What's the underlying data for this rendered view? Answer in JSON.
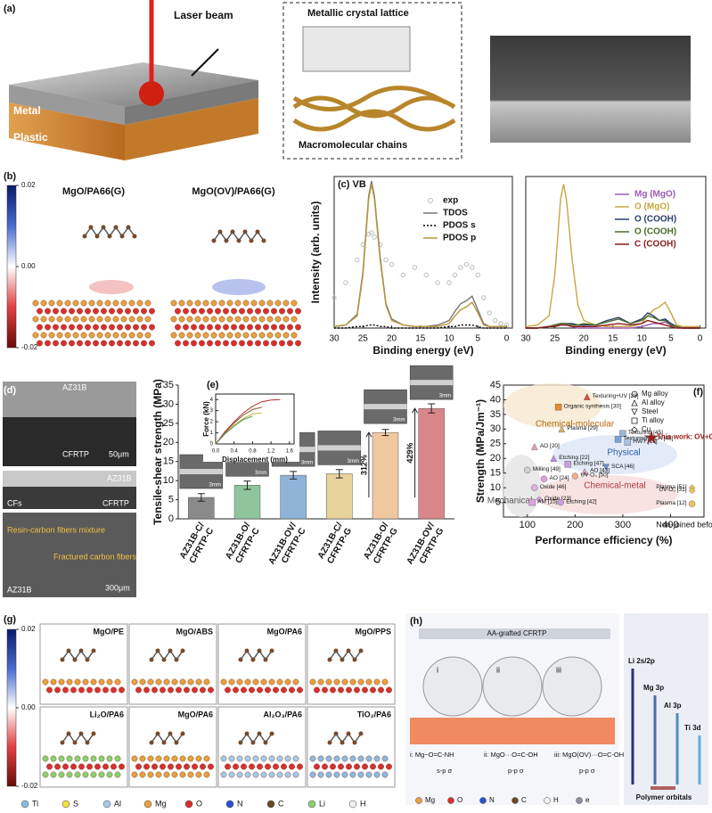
{
  "panel_a": {
    "label": "(a)",
    "laser": "Laser beam",
    "lattice": "Metallic crystal lattice",
    "metal": "Metal",
    "plastic": "Plastic",
    "chains": "Macromolecular chains"
  },
  "panel_b": {
    "label": "(b)",
    "titles": [
      "MgO/PA66(G)",
      "MgO(OV)/PA66(G)"
    ],
    "colorbar_ticks": [
      0.02,
      {
        "value": 0,
        "label": "0.00"
      },
      -0.02
    ]
  },
  "panel_d": {
    "label": "(d)",
    "top_metal": "AZ31B",
    "top_plastic": "CFRTP",
    "top_scale": "50μm",
    "mid_metal": "AZ31B",
    "mid_plastic": "CFRTP",
    "mid_fibers": "CFs",
    "mixture": "Resin-carbon fibers mixture",
    "fractured": "Fractured carbon fibers",
    "bottom_metal": "AZ31B",
    "bottom_scale": "300μm"
  },
  "panel_g": {
    "label": "(g)",
    "titles": [
      "MgO/PE",
      "MgO/ABS",
      "MgO/PA6",
      "MgO/PPS",
      "Li₂O/PA6",
      "MgO/PA6",
      "Al₂O₃/PA6",
      "TiO₂/PA6"
    ],
    "colorbar_ticks": [
      0.02,
      {
        "value": 0,
        "label": "0.00"
      },
      -0.02
    ],
    "legend": [
      "Ti",
      "S",
      "Al",
      "Mg",
      "O",
      "N",
      "C",
      "Li",
      "H"
    ],
    "legend_colors": [
      "#8fb8e0",
      "#f2e040",
      "#a8c8e8",
      "#e8a040",
      "#d83030",
      "#3050d0",
      "#6b4a2a",
      "#8ad070",
      "#f0f0f0"
    ]
  },
  "panel_h": {
    "label": "(h)",
    "top": "AA-grafted CFRTP",
    "sites": [
      "i",
      "ii",
      "iii"
    ],
    "bonds": [
      "i: Mg−O=C-NH",
      "ii: MgO···O=C-OH",
      "iii: MgO(OV)···O=C-OH"
    ],
    "orbitals": [
      "s-p σ",
      "p-p σ",
      "p-p σ"
    ],
    "levels": [
      "Li 2s/2p",
      "Mg 3p",
      "Al 3p",
      "Ti 3d"
    ],
    "polymer": "Polymer orbitals",
    "legend": [
      "Mg",
      "O",
      "N",
      "C",
      "H",
      "e"
    ],
    "legend_colors": [
      "#e8a040",
      "#d83030",
      "#3050d0",
      "#6b4a2a",
      "#f0f0f0",
      "#9090a0"
    ]
  },
  "chart_data": [
    {
      "type": "line",
      "title": "(c) VB",
      "x_label": "Binding energy (eV)",
      "y_label": "Intensity (arb. units)",
      "xlim": [
        30,
        -1
      ],
      "xticks": [
        30,
        25,
        20,
        15,
        10,
        5,
        0
      ],
      "ylim": [
        0,
        1
      ],
      "x": [
        30,
        28,
        26,
        25,
        24,
        23.5,
        23,
        22,
        21,
        20,
        18,
        16,
        14,
        12,
        10,
        9,
        8,
        7,
        6,
        5,
        4,
        3,
        2,
        1,
        0
      ],
      "series": [
        {
          "name": "exp",
          "color": "#bbbbbb",
          "style": "markers",
          "values": [
            0.2,
            0.3,
            0.45,
            0.55,
            0.62,
            0.63,
            0.6,
            0.55,
            0.45,
            0.42,
            0.35,
            0.4,
            0.35,
            0.3,
            0.3,
            0.35,
            0.4,
            0.42,
            0.4,
            0.35,
            0.2,
            0.1,
            0.05,
            0.03,
            0.02
          ]
        },
        {
          "name": "TDOS",
          "color": "#777777",
          "style": "solid",
          "values": [
            0.01,
            0.02,
            0.09,
            0.37,
            0.87,
            0.97,
            0.87,
            0.47,
            0.16,
            0.06,
            0.02,
            0.01,
            0.01,
            0.02,
            0.05,
            0.11,
            0.16,
            0.18,
            0.21,
            0.12,
            0.03,
            0.01,
            0.01,
            0.01,
            0.01
          ]
        },
        {
          "name": "PDOS s",
          "color": "#000000",
          "style": "dotted",
          "values": [
            0,
            0,
            0.01,
            0.01,
            0.02,
            0.02,
            0.02,
            0.01,
            0.01,
            0,
            0,
            0,
            0,
            0,
            0.01,
            0.01,
            0.02,
            0.02,
            0.02,
            0.01,
            0,
            0,
            0,
            0,
            0
          ]
        },
        {
          "name": "PDOS p",
          "color": "#b8963a",
          "style": "solid",
          "values": [
            0.01,
            0.02,
            0.08,
            0.35,
            0.85,
            0.95,
            0.85,
            0.45,
            0.15,
            0.05,
            0.02,
            0.01,
            0.01,
            0.01,
            0.03,
            0.08,
            0.12,
            0.14,
            0.17,
            0.1,
            0.02,
            0.01,
            0.01,
            0.01,
            0.01
          ]
        }
      ]
    },
    {
      "type": "line",
      "x_label": "Binding energy (eV)",
      "xlim": [
        30,
        -1
      ],
      "xticks": [
        30,
        25,
        20,
        15,
        10,
        5,
        0
      ],
      "ylim": [
        0,
        1
      ],
      "x": [
        30,
        28,
        26,
        25,
        24,
        23.5,
        23,
        22,
        21,
        20,
        18,
        16,
        14,
        12,
        10,
        9,
        8,
        7,
        6,
        5,
        4,
        3,
        2,
        1,
        0
      ],
      "series": [
        {
          "name": "Mg (MgO)",
          "color": "#9b59b6",
          "style": "solid",
          "values": [
            0,
            0,
            0.01,
            0.01,
            0.02,
            0.02,
            0.02,
            0.01,
            0,
            0,
            0,
            0,
            0,
            0,
            0.01,
            0.02,
            0.03,
            0.03,
            0.04,
            0.02,
            0.01,
            0,
            0,
            0,
            0
          ]
        },
        {
          "name": "O (MgO)",
          "color": "#c8a640",
          "style": "solid",
          "values": [
            0.01,
            0.02,
            0.08,
            0.35,
            0.85,
            0.95,
            0.85,
            0.45,
            0.15,
            0.05,
            0.02,
            0.01,
            0.01,
            0.01,
            0.03,
            0.08,
            0.12,
            0.14,
            0.17,
            0.1,
            0.02,
            0.01,
            0.01,
            0.01,
            0.01
          ]
        },
        {
          "name": "O (COOH)",
          "color": "#2c3e70",
          "style": "solid",
          "values": [
            0,
            0,
            0.01,
            0.02,
            0.03,
            0.03,
            0.03,
            0.03,
            0.02,
            0.02,
            0.02,
            0.05,
            0.07,
            0.03,
            0.06,
            0.1,
            0.08,
            0.05,
            0.06,
            0.03,
            0.01,
            0,
            0,
            0,
            0
          ]
        },
        {
          "name": "O (COOH)",
          "color": "#4a6b2a",
          "style": "solid",
          "values": [
            0,
            0,
            0.01,
            0.02,
            0.03,
            0.03,
            0.03,
            0.02,
            0.02,
            0.03,
            0.02,
            0.04,
            0.06,
            0.03,
            0.05,
            0.08,
            0.07,
            0.05,
            0.05,
            0.02,
            0.01,
            0,
            0,
            0,
            0
          ]
        },
        {
          "name": "C (COOH)",
          "color": "#8b1a1a",
          "style": "solid",
          "values": [
            0,
            0,
            0.01,
            0.01,
            0.02,
            0.02,
            0.02,
            0.01,
            0.01,
            0.01,
            0.01,
            0.02,
            0.03,
            0.02,
            0.03,
            0.05,
            0.04,
            0.03,
            0.02,
            0.01,
            0,
            0,
            0,
            0,
            0
          ]
        }
      ]
    },
    {
      "type": "bar",
      "title": "(e)",
      "y_label": "Tensile-shear strength (MPa)",
      "categories": [
        "AZ31B-C/ CFRTP-C",
        "AZ31B-O/ CFRTP-C",
        "AZ31B-OV/ CFRTP-C",
        "AZ31B-C/ CFRTP-G",
        "AZ31B-O/ CFRTP-G",
        "AZ31B-OV/ CFRTP-G"
      ],
      "values": [
        5.6,
        8.8,
        11.4,
        11.8,
        22.6,
        28.9
      ],
      "errors": [
        1.0,
        1.1,
        1.0,
        1.1,
        0.8,
        1.2
      ],
      "colors": [
        "#8a8a8a",
        "#8fc59a",
        "#8fb4d8",
        "#e8d39a",
        "#f0c8a0",
        "#d9868a"
      ],
      "ylim": [
        0,
        35
      ],
      "yticks": [
        0,
        5,
        10,
        15,
        20,
        25,
        30,
        35
      ],
      "annotations": [
        "312%",
        "429%"
      ],
      "photo_labels": [
        "3mm",
        "3mm",
        "3mm",
        "3mm",
        "3mm",
        "3mm"
      ]
    },
    {
      "type": "line",
      "x_label": "Displacement (mm)",
      "y_label": "Force (kN)",
      "xlim": [
        0,
        1.7
      ],
      "xticks": [
        {
          "value": 0,
          "label": "0.0"
        },
        0.4,
        0.8,
        1.2,
        1.6
      ],
      "ylim": [
        0,
        4.5
      ],
      "yticks": [
        0,
        1,
        2,
        3,
        4
      ],
      "x": [
        0,
        0.2,
        0.4,
        0.6,
        0.8,
        1.0,
        1.2,
        1.4
      ],
      "series": [
        {
          "color": "#b03030",
          "style": "solid",
          "values": [
            0,
            1.1,
            2.0,
            2.8,
            3.4,
            3.8,
            3.95,
            4.0
          ]
        },
        {
          "color": "#8a5a30",
          "style": "solid",
          "values": [
            0,
            1.0,
            1.9,
            2.6,
            3.1,
            3.3,
            null,
            null
          ]
        },
        {
          "color": "#c8b040",
          "style": "solid",
          "values": [
            0,
            0.9,
            1.7,
            2.3,
            2.7,
            2.8,
            null,
            null
          ]
        },
        {
          "color": "#5a9a5a",
          "style": "solid",
          "values": [
            0,
            0.9,
            1.6,
            2.2,
            2.5,
            null,
            null,
            null
          ]
        }
      ]
    },
    {
      "type": "scatter",
      "title": "(f)",
      "x_label": "Performance efficiency (%)",
      "y_label": "Strength (MPa/Jm⁻¹)",
      "xlim": [
        50,
        470
      ],
      "xticks": [
        100,
        200,
        300,
        400
      ],
      "ylim": [
        0,
        45
      ],
      "yticks": [
        5,
        10,
        15,
        20,
        25,
        30,
        35,
        40,
        45
      ],
      "x_annotation": "Non-joined before",
      "x": [
        225,
        165,
        172,
        300,
        290,
        310,
        360,
        115,
        155,
        185,
        265,
        220,
        200,
        135,
        100,
        115,
        125,
        110,
        170,
        445,
        445,
        445
      ],
      "values": [
        41,
        37.5,
        30,
        28.5,
        26.5,
        25.5,
        27,
        24,
        20,
        18,
        17,
        15.5,
        14,
        13,
        16,
        10,
        6,
        5,
        5,
        10,
        9,
        4.5
      ],
      "point_labels": [
        "Texturing+UV [28]",
        "Organic synthesis [30]",
        "Plasma [29]",
        "Texturing [45]",
        "Texturing+SCA [48]",
        "HWT [18]",
        "This work: OV+G",
        "AO [20]",
        "Etching [22]",
        "Etching [47]",
        "SCA [46]",
        "AO [43]",
        "UV-O₃ [50]",
        "AO [24]",
        "Milling [49]",
        "Oxide [46]",
        "Oxide [23]",
        "AM [15]",
        "Etching [42]",
        "Plasma [51]",
        "UV-O₃ [31]",
        "Plasma [12]"
      ],
      "markers": [
        "triangle",
        "square",
        "triangle",
        "square",
        "square",
        "square",
        "star",
        "triangle",
        "triangle",
        "square",
        "downtriangle",
        "triangle",
        "circle",
        "circle",
        "circle",
        "circle",
        "diamond",
        "square",
        "circle",
        "diamond",
        "diamond",
        "circle"
      ],
      "colors": [
        "#e04a3a",
        "#e8892a",
        "#d9b56a",
        "#9ab8d8",
        "#7aa0d8",
        "#a8c4e0",
        "#a31c1c",
        "#e8a0c0",
        "#c090e0",
        "#c8a0e0",
        "#7090d8",
        "#e8a0c0",
        "#f0b090",
        "#e0a0d0",
        "#d0d0d0",
        "#e0b0e0",
        "#d8a0d0",
        "#e0a0e0",
        "#c8a0e0",
        "#f0c060",
        "#f0c060",
        "#f0c060"
      ],
      "regions": [
        "Chemical-molecular",
        "Physical",
        "Chemical-metal",
        "Mechanical"
      ],
      "legend": [
        "Mg alloy",
        "Al alloy",
        "Steel",
        "Ti alloy",
        "Cu"
      ],
      "legend_markers": [
        "circle",
        "triangle",
        "downtriangle",
        "square",
        "diamond"
      ]
    }
  ]
}
